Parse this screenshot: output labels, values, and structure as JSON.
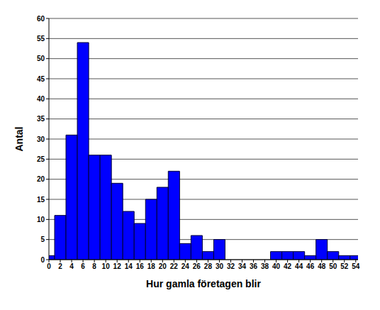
{
  "chart_data": {
    "type": "histogram",
    "x_label": "Hur gamla företagen blir",
    "y_label": "Antal",
    "bins": [
      -1,
      1,
      3,
      5,
      7,
      9,
      11,
      13,
      15,
      17,
      19,
      21,
      23,
      25,
      27,
      29,
      31,
      33,
      35,
      37,
      39,
      41,
      43,
      45,
      47,
      49,
      51,
      53,
      55
    ],
    "values": [
      1,
      11,
      31,
      54,
      26,
      26,
      19,
      12,
      9,
      15,
      18,
      22,
      4,
      6,
      2,
      5,
      0,
      0,
      0,
      0,
      2,
      2,
      2,
      1,
      5,
      2,
      1,
      1
    ],
    "color": "#0000ff",
    "xlim": [
      0,
      54.4
    ],
    "xticks": [
      0,
      2,
      4,
      6,
      8,
      10,
      12,
      14,
      16,
      18,
      20,
      22,
      24,
      26,
      28,
      30,
      32,
      34,
      36,
      38,
      40,
      42,
      44,
      46,
      48,
      50,
      52,
      54
    ],
    "ylim": [
      0,
      60
    ],
    "yticks": [
      0,
      5,
      10,
      15,
      20,
      25,
      30,
      35,
      40,
      45,
      50,
      55,
      60
    ],
    "grid": true
  }
}
